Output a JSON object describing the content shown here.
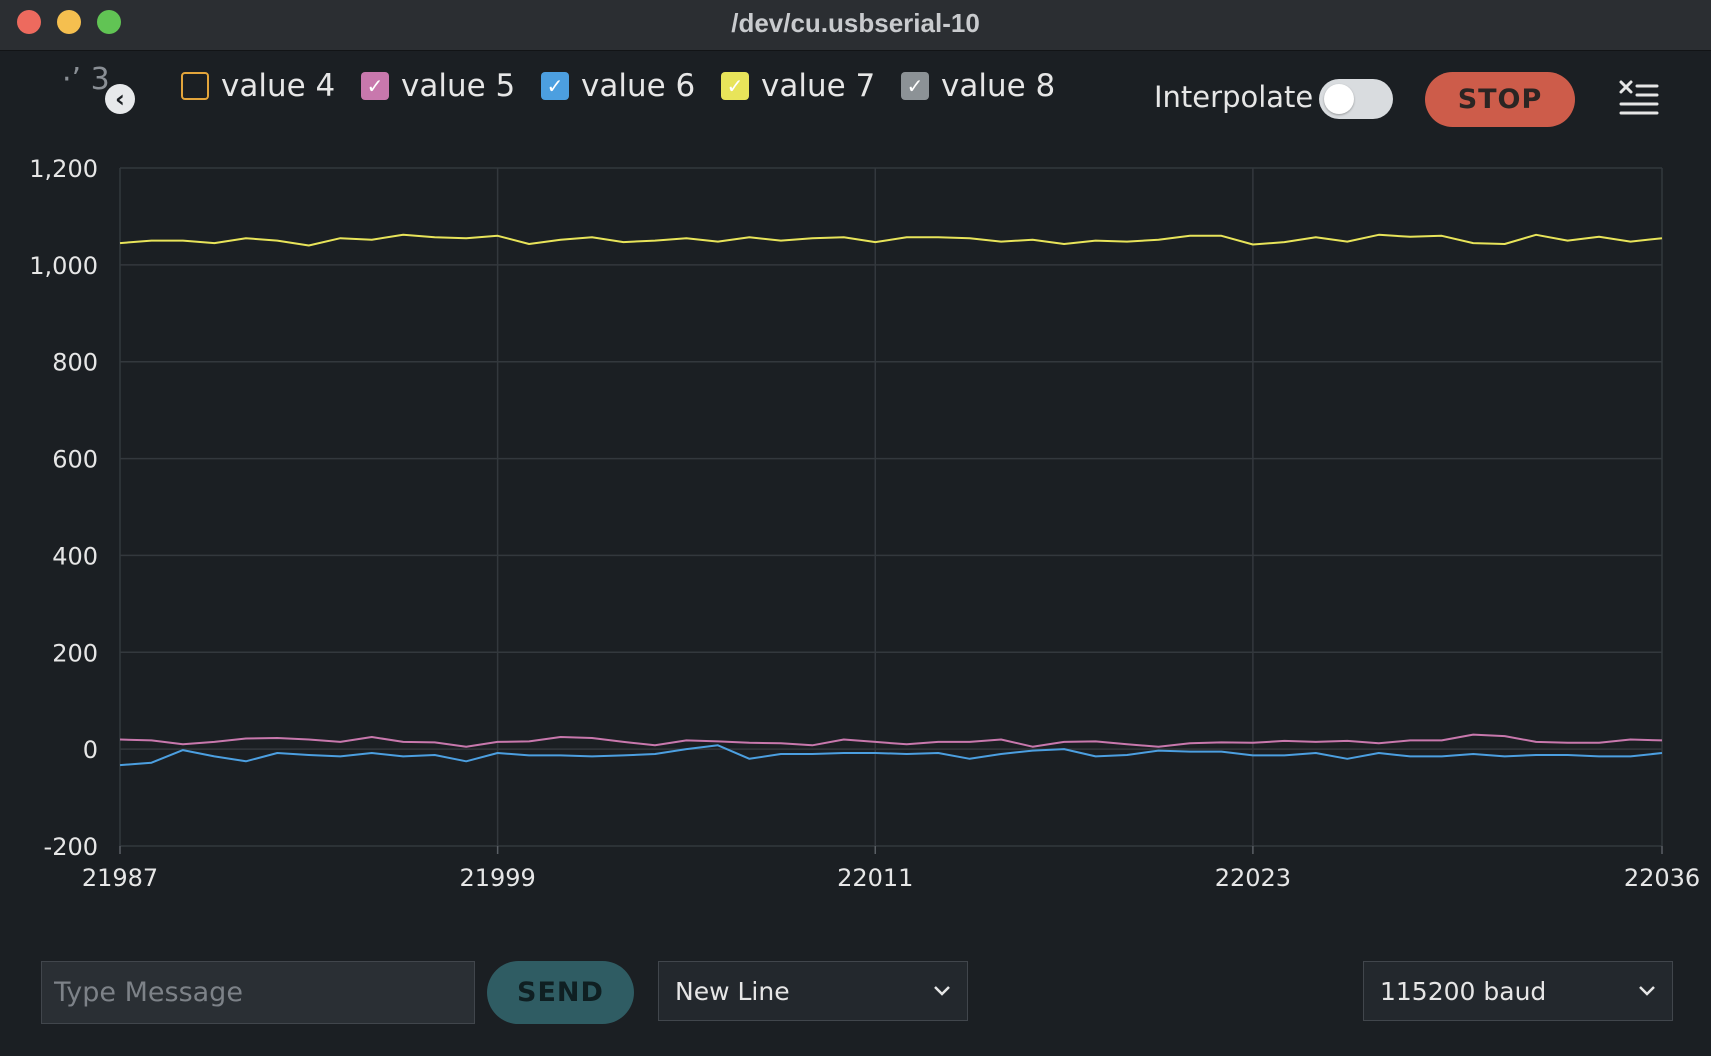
{
  "window": {
    "title": "/dev/cu.usbserial-10"
  },
  "toolbar": {
    "partial_legend_text": "·ʼ  3",
    "legend": [
      {
        "label": "value 4",
        "checked": false,
        "color": "#e3a53b"
      },
      {
        "label": "value 5",
        "checked": true,
        "color": "#c878ad"
      },
      {
        "label": "value 6",
        "checked": true,
        "color": "#4c9fe0"
      },
      {
        "label": "value 7",
        "checked": true,
        "color": "#e8e45a"
      },
      {
        "label": "value 8",
        "checked": true,
        "color": "#8c9296"
      }
    ],
    "interpolate_label": "Interpolate",
    "interpolate_on": false,
    "stop_label": "STOP",
    "icons": {
      "scroll_left": "chevron-left-icon",
      "clear": "clear-list-icon"
    }
  },
  "chart_data": {
    "type": "line",
    "x_ticks": [
      21987,
      21999,
      22011,
      22023,
      22036
    ],
    "y_ticks": [
      -200,
      0,
      200,
      400,
      600,
      800,
      1000,
      1200
    ],
    "y_tick_labels": [
      "-200",
      "0",
      "200",
      "400",
      "600",
      "800",
      "1,000",
      "1,200"
    ],
    "xlim": [
      21987,
      22036
    ],
    "ylim": [
      -200,
      1200
    ],
    "grid": true,
    "series": [
      {
        "name": "value 7",
        "color": "#e8e45a",
        "x_start": 21987,
        "values": [
          1045,
          1050,
          1050,
          1045,
          1055,
          1050,
          1040,
          1055,
          1052,
          1062,
          1057,
          1055,
          1060,
          1043,
          1052,
          1057,
          1047,
          1050,
          1055,
          1048,
          1057,
          1050,
          1055,
          1057,
          1047,
          1057,
          1057,
          1055,
          1048,
          1052,
          1043,
          1050,
          1048,
          1052,
          1060,
          1060,
          1042,
          1047,
          1057,
          1048,
          1062,
          1058,
          1060,
          1045,
          1043,
          1062,
          1050,
          1058,
          1048,
          1055
        ]
      },
      {
        "name": "value 5",
        "color": "#c878ad",
        "x_start": 21987,
        "values": [
          20,
          18,
          10,
          15,
          22,
          23,
          20,
          15,
          25,
          15,
          14,
          5,
          15,
          16,
          25,
          23,
          15,
          8,
          18,
          16,
          13,
          12,
          8,
          20,
          15,
          10,
          15,
          15,
          20,
          5,
          15,
          16,
          10,
          5,
          12,
          14,
          13,
          17,
          15,
          17,
          12,
          18,
          18,
          30,
          27,
          15,
          13,
          13,
          20,
          18
        ]
      },
      {
        "name": "value 6",
        "color": "#4c9fe0",
        "x_start": 21987,
        "values": [
          -33,
          -28,
          -2,
          -15,
          -25,
          -8,
          -12,
          -15,
          -8,
          -15,
          -12,
          -25,
          -8,
          -13,
          -13,
          -15,
          -13,
          -10,
          0,
          8,
          -20,
          -10,
          -10,
          -8,
          -8,
          -10,
          -8,
          -20,
          -10,
          -3,
          0,
          -15,
          -12,
          -3,
          -5,
          -5,
          -13,
          -13,
          -8,
          -20,
          -8,
          -15,
          -15,
          -10,
          -15,
          -12,
          -12,
          -15,
          -15,
          -8
        ]
      }
    ]
  },
  "bottom": {
    "message_placeholder": "Type Message",
    "send_label": "SEND",
    "line_ending": "New Line",
    "baud": "115200 baud"
  }
}
